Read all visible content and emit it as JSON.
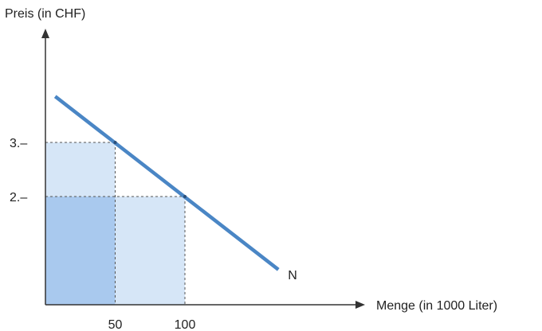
{
  "chart_data": {
    "type": "line",
    "title": "",
    "xlabel": "Menge (in 1000 Liter)",
    "ylabel": "Preis (in CHF)",
    "xlim": [
      0,
      200
    ],
    "ylim": [
      0,
      6
    ],
    "x_ticks": [
      {
        "value": 50,
        "label": "50"
      },
      {
        "value": 100,
        "label": "100"
      }
    ],
    "y_ticks": [
      {
        "value": 3,
        "label": "3.–"
      },
      {
        "value": 2,
        "label": "2.–"
      }
    ],
    "series": [
      {
        "name": "N",
        "x": [
          7,
          167
        ],
        "y": [
          3.85,
          0.65
        ],
        "color": "#4a86c5"
      }
    ],
    "points": [
      {
        "x": 50,
        "y": 3
      },
      {
        "x": 100,
        "y": 2
      }
    ],
    "regions": [
      {
        "x": [
          0,
          50
        ],
        "y": [
          2,
          3
        ],
        "color": "#d6e6f7"
      },
      {
        "x": [
          0,
          50
        ],
        "y": [
          0,
          2
        ],
        "color": "#a9c9ee"
      },
      {
        "x": [
          50,
          100
        ],
        "y": [
          0,
          2
        ],
        "color": "#d6e6f7"
      }
    ],
    "grid": false
  },
  "colors": {
    "axis": "#333333",
    "guide": "#555555",
    "demand_line": "#4a86c5"
  }
}
